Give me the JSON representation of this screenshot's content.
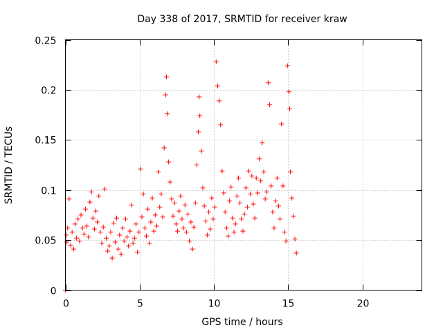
{
  "chart_data": {
    "type": "scatter",
    "title": "Day 338 of 2017, SRMTID for receiver kraw",
    "xlabel": "GPS time / hours",
    "ylabel": "SRMTID / TECUs",
    "xlim": [
      0,
      24
    ],
    "ylim": [
      0,
      0.25
    ],
    "x_ticks": [
      0,
      5,
      10,
      15,
      20
    ],
    "x_tick_labels": [
      "0",
      "5",
      "10",
      "15",
      "20"
    ],
    "y_ticks": [
      0,
      0.05,
      0.1,
      0.15,
      0.2,
      0.25
    ],
    "y_tick_labels": [
      "0",
      "0.05",
      "0.1",
      "0.15",
      "0.2",
      "0.25"
    ],
    "grid": true,
    "marker": "plus",
    "series_color": "#ff0000",
    "series": [
      {
        "name": "SRMTID",
        "x": [
          0.0,
          0.05,
          0.1,
          0.15,
          0.25,
          0.35,
          0.45,
          0.55,
          0.65,
          0.75,
          0.85,
          0.95,
          1.05,
          1.15,
          1.25,
          1.35,
          1.45,
          1.55,
          1.65,
          1.75,
          1.85,
          1.95,
          2.05,
          2.15,
          2.25,
          2.35,
          2.45,
          2.55,
          2.65,
          2.75,
          2.85,
          2.95,
          3.05,
          3.15,
          3.25,
          3.35,
          3.45,
          3.55,
          3.65,
          3.75,
          3.85,
          3.95,
          4.05,
          4.15,
          4.25,
          4.35,
          4.45,
          4.55,
          4.65,
          4.75,
          4.85,
          4.95,
          5.05,
          5.15,
          5.25,
          5.35,
          5.45,
          5.55,
          5.65,
          5.75,
          5.85,
          5.95,
          6.05,
          6.15,
          6.25,
          6.35,
          6.45,
          6.55,
          6.65,
          6.75,
          6.8,
          6.85,
          6.95,
          7.05,
          7.15,
          7.25,
          7.35,
          7.45,
          7.55,
          7.65,
          7.75,
          7.85,
          7.95,
          8.05,
          8.15,
          8.25,
          8.35,
          8.45,
          8.55,
          8.65,
          8.75,
          8.85,
          8.95,
          9.0,
          9.05,
          9.15,
          9.25,
          9.35,
          9.45,
          9.55,
          9.65,
          9.75,
          9.85,
          9.95,
          10.05,
          10.15,
          10.25,
          10.35,
          10.45,
          10.55,
          10.65,
          10.75,
          10.85,
          10.95,
          11.05,
          11.15,
          11.25,
          11.35,
          11.45,
          11.55,
          11.65,
          11.75,
          11.85,
          11.95,
          12.05,
          12.15,
          12.25,
          12.35,
          12.45,
          12.55,
          12.65,
          12.75,
          12.85,
          12.95,
          13.05,
          13.15,
          13.25,
          13.35,
          13.45,
          13.55,
          13.65,
          13.75,
          13.85,
          13.95,
          14.05,
          14.15,
          14.25,
          14.35,
          14.45,
          14.55,
          14.65,
          14.75,
          14.85,
          14.95,
          15.05,
          15.1,
          15.15,
          15.25,
          15.35,
          15.45,
          15.55
        ],
        "y": [
          0.0,
          0.055,
          0.048,
          0.062,
          0.091,
          0.045,
          0.058,
          0.041,
          0.066,
          0.052,
          0.071,
          0.049,
          0.075,
          0.062,
          0.056,
          0.081,
          0.064,
          0.053,
          0.088,
          0.098,
          0.072,
          0.061,
          0.079,
          0.068,
          0.094,
          0.058,
          0.047,
          0.063,
          0.101,
          0.052,
          0.039,
          0.044,
          0.058,
          0.032,
          0.067,
          0.048,
          0.072,
          0.041,
          0.055,
          0.036,
          0.062,
          0.049,
          0.071,
          0.053,
          0.044,
          0.059,
          0.085,
          0.047,
          0.052,
          0.066,
          0.038,
          0.058,
          0.121,
          0.073,
          0.096,
          0.062,
          0.054,
          0.081,
          0.047,
          0.068,
          0.092,
          0.059,
          0.075,
          0.064,
          0.118,
          0.083,
          0.096,
          0.073,
          0.142,
          0.195,
          0.213,
          0.176,
          0.128,
          0.108,
          0.091,
          0.074,
          0.087,
          0.066,
          0.059,
          0.079,
          0.094,
          0.071,
          0.062,
          0.085,
          0.058,
          0.076,
          0.049,
          0.068,
          0.041,
          0.063,
          0.087,
          0.125,
          0.158,
          0.193,
          0.174,
          0.139,
          0.102,
          0.084,
          0.069,
          0.055,
          0.078,
          0.061,
          0.092,
          0.071,
          0.083,
          0.228,
          0.204,
          0.189,
          0.165,
          0.119,
          0.097,
          0.078,
          0.062,
          0.054,
          0.089,
          0.103,
          0.072,
          0.058,
          0.066,
          0.094,
          0.112,
          0.087,
          0.071,
          0.059,
          0.076,
          0.102,
          0.083,
          0.119,
          0.096,
          0.114,
          0.086,
          0.072,
          0.112,
          0.097,
          0.131,
          0.109,
          0.147,
          0.118,
          0.091,
          0.098,
          0.207,
          0.185,
          0.104,
          0.078,
          0.062,
          0.089,
          0.112,
          0.084,
          0.071,
          0.166,
          0.104,
          0.058,
          0.049,
          0.224,
          0.198,
          0.181,
          0.118,
          0.092,
          0.074,
          0.051,
          0.037
        ]
      }
    ]
  }
}
